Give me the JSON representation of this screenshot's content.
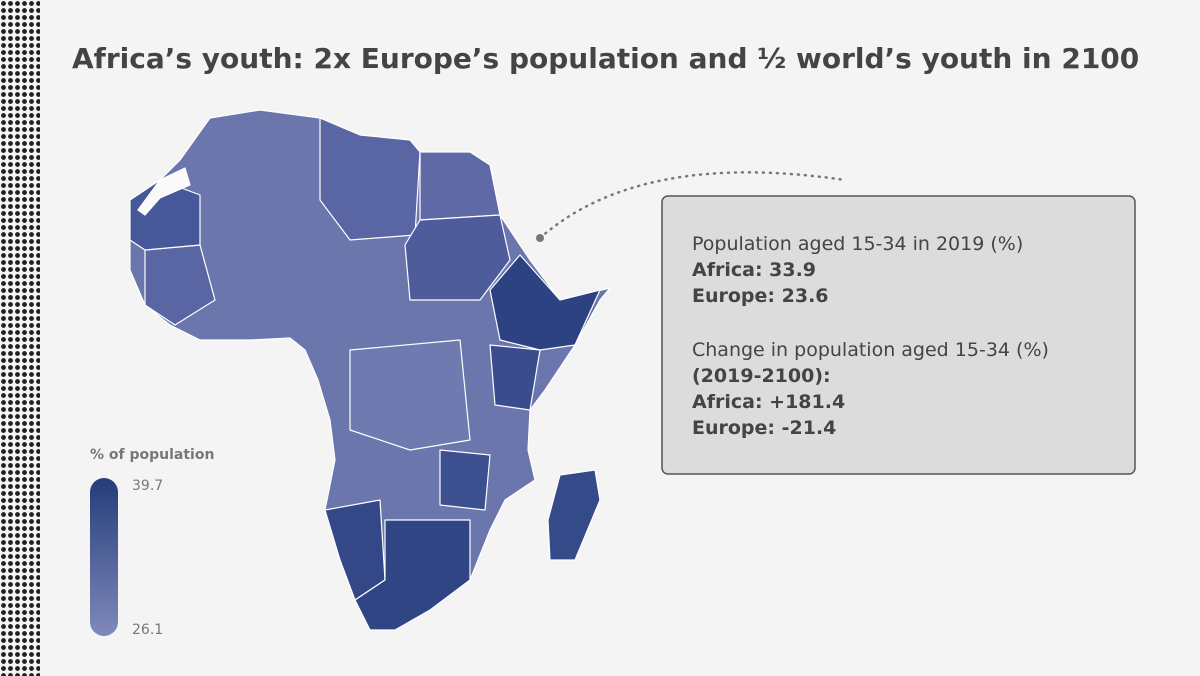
{
  "title": "Africa’s youth: 2x Europe’s population and ½ world’s youth in 2100",
  "legend": {
    "title": "% of population",
    "max": 39.7,
    "min": 26.1
  },
  "infobox": {
    "lines": [
      "Population aged 15-34 in 2019 (%)",
      "Africa: 33.9",
      "Europe: 23.6",
      "Change in population aged 15-34 (%)",
      "(2019-2100):",
      "Africa: +181.4",
      "Europe: -21.4"
    ]
  }
}
